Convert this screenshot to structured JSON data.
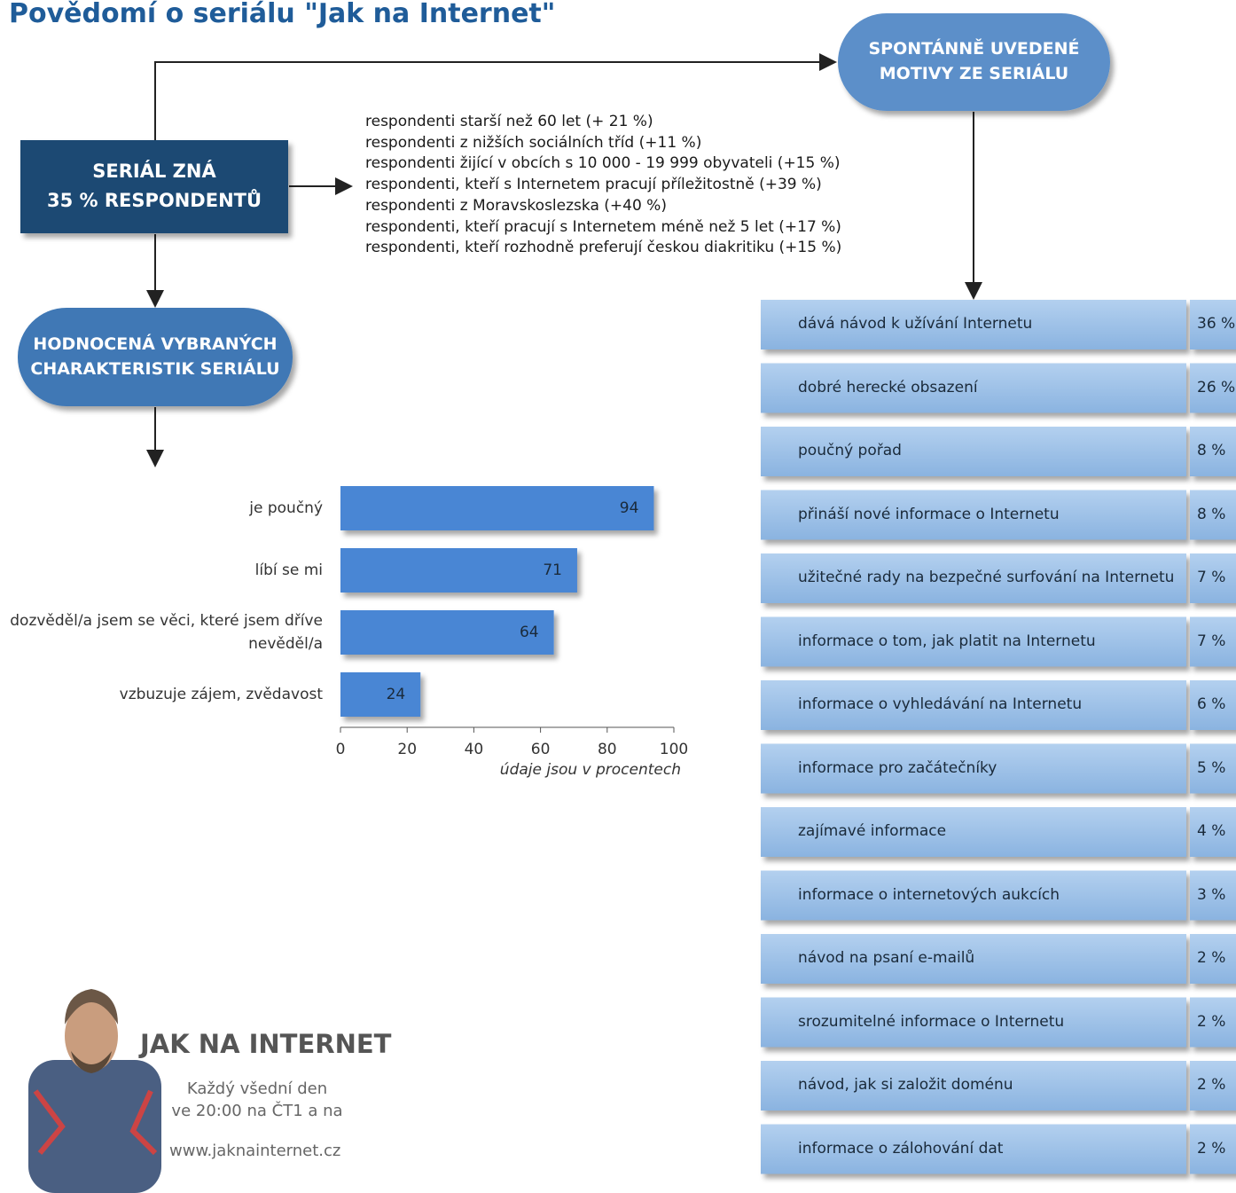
{
  "title": "Povědomí o seriálu \"Jak na Internet\"",
  "known_box": [
    "SERIÁL ZNÁ",
    "35 % RESPONDENTŮ"
  ],
  "motives_pill": [
    "SPONTÁNNĚ UVEDENÉ",
    "MOTIVY ZE SERIÁLU"
  ],
  "ratings_pill": [
    "HODNOCENÁ VYBRANÝCH",
    "CHARAKTERISTIK SERIÁLU"
  ],
  "notes": [
    "respondenti starší než 60 let (+ 21 %)",
    "respondenti z nižších sociálních tříd (+11 %)",
    "respondenti žijící v obcích s 10 000 - 19 999 obyvateli (+15 %)",
    "respondenti, kteří s Internetem pracují příležitostně (+39 %)",
    "respondenti z Moravskoslezska (+40 %)",
    "respondenti, kteří pracují s Internetem méně než 5 let (+17 %)",
    "respondenti, kteří rozhodně preferují českou diakritiku (+15 %)"
  ],
  "motives": [
    [
      "dává návod k užívání Internetu",
      "36 %"
    ],
    [
      "dobré herecké obsazení",
      "26 %"
    ],
    [
      "poučný pořad",
      "8 %"
    ],
    [
      "přináší nové informace o Internetu",
      "8 %"
    ],
    [
      "užitečné rady na bezpečné surfování na Internetu",
      "7 %"
    ],
    [
      "informace o tom, jak platit na Internetu",
      "7 %"
    ],
    [
      "informace o vyhledávání na Internetu",
      "6 %"
    ],
    [
      "informace pro začátečníky",
      "5 %"
    ],
    [
      "zajímavé informace",
      "4 %"
    ],
    [
      "informace o internetových aukcích",
      "3 %"
    ],
    [
      "návod na psaní e-mailů",
      "2 %"
    ],
    [
      "srozumitelné informace o Internetu",
      "2 %"
    ],
    [
      "návod, jak si založit doménu",
      "2 %"
    ],
    [
      "informace o zálohování dat",
      "2 %"
    ]
  ],
  "promo": {
    "title": "JAK NA INTERNET",
    "lines": [
      "Každý všední den",
      "ve 20:00 na ČT1 a na"
    ],
    "url": "www.jaknainternet.cz"
  },
  "chart_data": {
    "type": "hbar",
    "categories": [
      "je poučný",
      "líbí se mi",
      "dozvěděl/a jsem se věci, které jsem dříve nevěděl/a",
      "vzbuzuje zájem, zvědavost"
    ],
    "values": [
      94,
      71,
      64,
      24
    ],
    "color": "#4a86d4",
    "xlim": [
      0,
      100
    ],
    "xticks": [
      0,
      20,
      40,
      60,
      80,
      100
    ],
    "xlabel": "údaje jsou v procentech"
  }
}
